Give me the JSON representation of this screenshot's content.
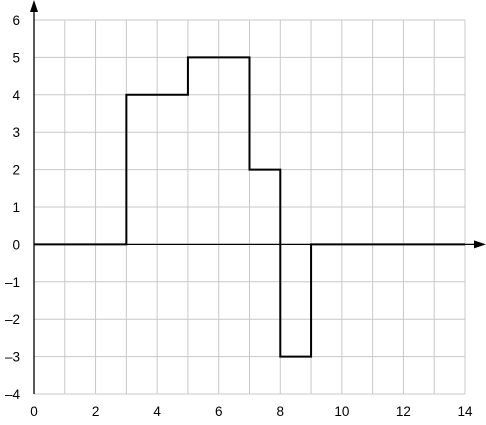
{
  "chart_data": {
    "type": "line",
    "title": "",
    "xlabel": "",
    "ylabel": "",
    "xlim": [
      0,
      14
    ],
    "ylim": [
      -4,
      6
    ],
    "x_ticks": [
      0,
      2,
      4,
      6,
      8,
      10,
      12,
      14
    ],
    "y_ticks": [
      6,
      5,
      4,
      3,
      2,
      1,
      0,
      -1,
      -2,
      -3,
      -4
    ],
    "x_tick_labels": [
      "0",
      "2",
      "4",
      "6",
      "8",
      "10",
      "12",
      "14"
    ],
    "y_tick_labels": [
      "6",
      "5",
      "4",
      "3",
      "2",
      "1",
      "0",
      "–1",
      "–2",
      "–3",
      "–4"
    ],
    "grid": true,
    "step_function": {
      "points": [
        {
          "x": 0,
          "y": 0
        },
        {
          "x": 3,
          "y": 0
        },
        {
          "x": 3,
          "y": 4
        },
        {
          "x": 5,
          "y": 4
        },
        {
          "x": 5,
          "y": 5
        },
        {
          "x": 7,
          "y": 5
        },
        {
          "x": 7,
          "y": 2
        },
        {
          "x": 8,
          "y": 2
        },
        {
          "x": 8,
          "y": -3
        },
        {
          "x": 9,
          "y": -3
        },
        {
          "x": 9,
          "y": 0
        },
        {
          "x": 14,
          "y": 0
        }
      ]
    },
    "colors": {
      "line": "#000000",
      "grid": "#c8c8c8",
      "axis": "#000000"
    }
  }
}
